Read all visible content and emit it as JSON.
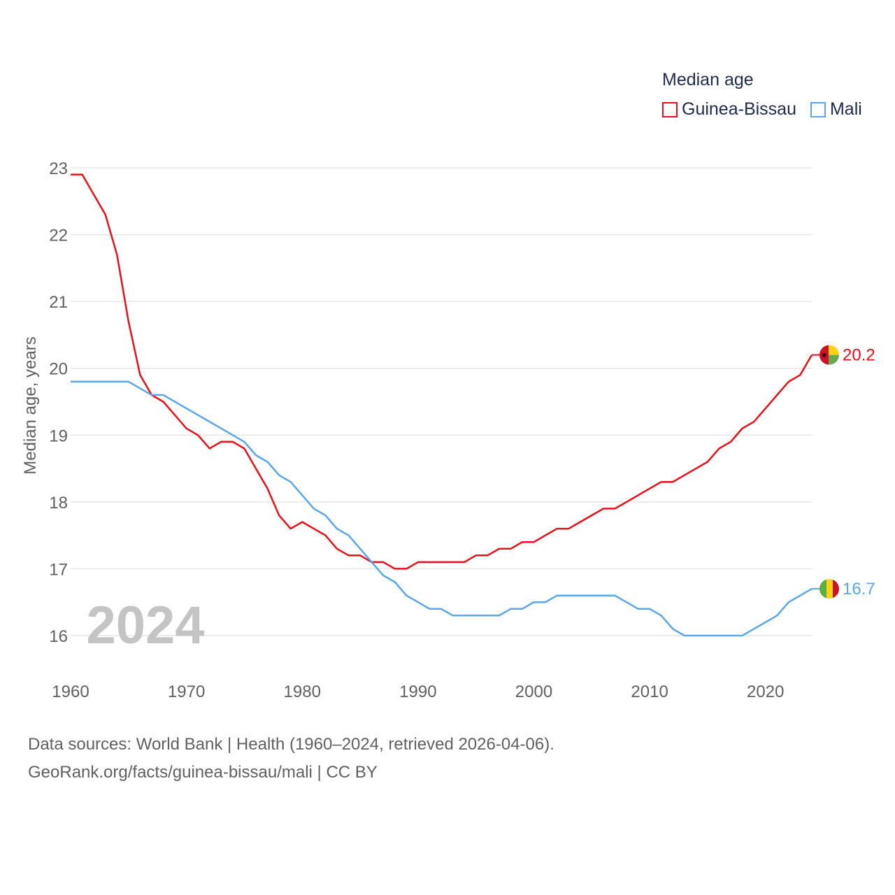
{
  "legend": {
    "title": "Median age",
    "items": [
      {
        "label": "Guinea-Bissau",
        "color": "#e8101a"
      },
      {
        "label": "Mali",
        "color": "#5aa6e8"
      }
    ]
  },
  "year_label": "2024",
  "footer": {
    "line1": "Data sources: World Bank | Health (1960–2024, retrieved 2026-04-06).",
    "line2": "GeoRank.org/facts/guinea-bissau/mali | CC BY"
  },
  "chart_data": {
    "type": "line",
    "title": "Median age",
    "ylabel": "Median age, years",
    "xlabel": "",
    "xlim": [
      1960,
      2024
    ],
    "ylim": [
      15.5,
      23.1
    ],
    "xticks": [
      1960,
      1970,
      1980,
      1990,
      2000,
      2010,
      2020
    ],
    "yticks": [
      16,
      17,
      18,
      19,
      20,
      21,
      22,
      23
    ],
    "grid": true,
    "legend_position": "top-right",
    "x": [
      1960,
      1961,
      1962,
      1963,
      1964,
      1965,
      1966,
      1967,
      1968,
      1969,
      1970,
      1971,
      1972,
      1973,
      1974,
      1975,
      1976,
      1977,
      1978,
      1979,
      1980,
      1981,
      1982,
      1983,
      1984,
      1985,
      1986,
      1987,
      1988,
      1989,
      1990,
      1991,
      1992,
      1993,
      1994,
      1995,
      1996,
      1997,
      1998,
      1999,
      2000,
      2001,
      2002,
      2003,
      2004,
      2005,
      2006,
      2007,
      2008,
      2009,
      2010,
      2011,
      2012,
      2013,
      2014,
      2015,
      2016,
      2017,
      2018,
      2019,
      2020,
      2021,
      2022,
      2023,
      2024
    ],
    "series": [
      {
        "name": "Guinea-Bissau",
        "color": "#e8101a",
        "end_label": "20.2",
        "values": [
          22.9,
          22.9,
          22.6,
          22.3,
          21.7,
          20.7,
          19.9,
          19.6,
          19.5,
          19.3,
          19.1,
          19.0,
          18.8,
          18.9,
          18.9,
          18.8,
          18.5,
          18.2,
          17.8,
          17.6,
          17.7,
          17.6,
          17.5,
          17.3,
          17.2,
          17.2,
          17.1,
          17.1,
          17.0,
          17.0,
          17.1,
          17.1,
          17.1,
          17.1,
          17.1,
          17.2,
          17.2,
          17.3,
          17.3,
          17.4,
          17.4,
          17.5,
          17.6,
          17.6,
          17.7,
          17.8,
          17.9,
          17.9,
          18.0,
          18.1,
          18.2,
          18.3,
          18.3,
          18.4,
          18.5,
          18.6,
          18.8,
          18.9,
          19.1,
          19.2,
          19.4,
          19.6,
          19.8,
          19.9,
          20.2
        ]
      },
      {
        "name": "Mali",
        "color": "#5aa6e8",
        "end_label": "16.7",
        "values": [
          19.8,
          19.8,
          19.8,
          19.8,
          19.8,
          19.8,
          19.7,
          19.6,
          19.6,
          19.5,
          19.4,
          19.3,
          19.2,
          19.1,
          19.0,
          18.9,
          18.7,
          18.6,
          18.4,
          18.3,
          18.1,
          17.9,
          17.8,
          17.6,
          17.5,
          17.3,
          17.1,
          16.9,
          16.8,
          16.6,
          16.5,
          16.4,
          16.4,
          16.3,
          16.3,
          16.3,
          16.3,
          16.3,
          16.4,
          16.4,
          16.5,
          16.5,
          16.6,
          16.6,
          16.6,
          16.6,
          16.6,
          16.6,
          16.5,
          16.4,
          16.4,
          16.3,
          16.1,
          16.0,
          16.0,
          16.0,
          16.0,
          16.0,
          16.0,
          16.1,
          16.2,
          16.3,
          16.5,
          16.6,
          16.7
        ]
      }
    ]
  }
}
